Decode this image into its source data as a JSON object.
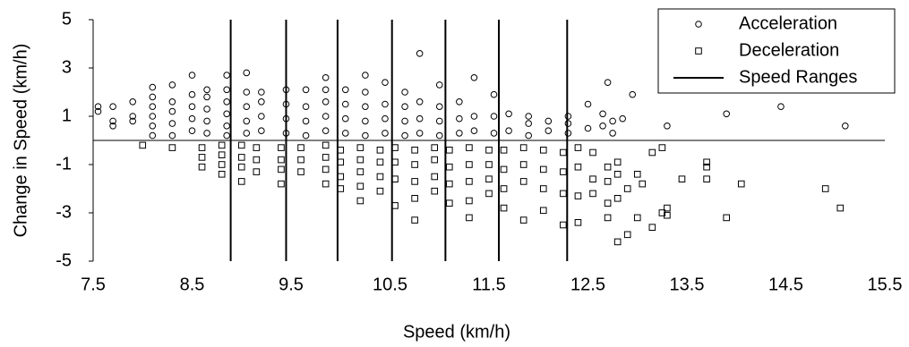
{
  "chart_data": {
    "type": "scatter",
    "x_label": "Speed (km/h)",
    "y_label": "Change in Speed (km/h)",
    "xlim": [
      7.5,
      15.5
    ],
    "xticks": [
      7.5,
      8.5,
      9.5,
      10.5,
      11.5,
      12.5,
      13.5,
      14.5,
      15.5
    ],
    "ylim": [
      -5,
      5
    ],
    "yticks": [
      -5,
      -3,
      -1,
      1,
      3,
      5
    ],
    "grid": false,
    "legend": "upper right",
    "series": [
      {
        "name": "Acceleration",
        "color": "#000000",
        "marker": "circle",
        "x": [
          7.55,
          7.55,
          7.7,
          7.7,
          7.7,
          7.9,
          7.9,
          7.9,
          8.1,
          8.1,
          8.1,
          8.1,
          8.1,
          8.1,
          8.3,
          8.3,
          8.3,
          8.3,
          8.3,
          8.5,
          8.5,
          8.5,
          8.5,
          8.5,
          8.65,
          8.65,
          8.65,
          8.65,
          8.65,
          8.85,
          8.85,
          8.85,
          8.85,
          8.85,
          8.85,
          9.05,
          9.05,
          9.05,
          9.05,
          9.05,
          9.2,
          9.2,
          9.2,
          9.2,
          9.45,
          9.45,
          9.45,
          9.45,
          9.65,
          9.65,
          9.65,
          9.65,
          9.85,
          9.85,
          9.85,
          9.85,
          9.85,
          10.05,
          10.05,
          10.05,
          10.05,
          10.25,
          10.25,
          10.25,
          10.25,
          10.25,
          10.45,
          10.45,
          10.45,
          10.45,
          10.65,
          10.65,
          10.65,
          10.65,
          10.8,
          10.8,
          10.8,
          10.8,
          11.0,
          11.0,
          11.0,
          11.0,
          11.2,
          11.2,
          11.2,
          11.35,
          11.35,
          11.35,
          11.55,
          11.55,
          11.55,
          11.7,
          11.7,
          11.9,
          11.9,
          11.9,
          12.1,
          12.1,
          12.3,
          12.3,
          12.3,
          12.5,
          12.5,
          12.65,
          12.65,
          12.7,
          12.75,
          12.75,
          12.85,
          12.95,
          13.3,
          13.9,
          14.45,
          15.1
        ],
        "values": [
          1.2,
          1.4,
          0.6,
          0.8,
          1.4,
          0.8,
          1.0,
          1.6,
          0.2,
          0.6,
          1.0,
          1.4,
          1.8,
          2.2,
          0.2,
          0.7,
          1.2,
          1.6,
          2.3,
          0.4,
          0.9,
          1.4,
          1.9,
          2.7,
          0.3,
          0.8,
          1.3,
          1.8,
          2.1,
          0.2,
          0.6,
          1.1,
          1.6,
          2.1,
          2.7,
          0.3,
          0.8,
          1.4,
          2.0,
          2.8,
          0.4,
          1.0,
          1.6,
          2.0,
          0.3,
          0.9,
          1.5,
          2.1,
          0.2,
          0.8,
          1.4,
          2.1,
          0.4,
          1.0,
          1.6,
          2.1,
          2.6,
          0.3,
          0.9,
          1.5,
          2.1,
          0.2,
          0.8,
          1.4,
          2.0,
          2.7,
          0.3,
          0.9,
          1.5,
          2.4,
          0.2,
          0.8,
          1.4,
          2.0,
          0.3,
          0.9,
          1.6,
          3.6,
          0.2,
          0.8,
          1.4,
          2.3,
          0.3,
          0.9,
          1.6,
          0.4,
          1.0,
          2.6,
          0.3,
          1.0,
          1.9,
          0.4,
          1.1,
          0.2,
          0.7,
          1.0,
          0.4,
          0.8,
          0.3,
          0.7,
          1.0,
          0.5,
          1.5,
          1.1,
          0.6,
          2.4,
          0.3,
          0.8,
          0.9,
          1.9,
          0.6,
          1.1,
          1.4,
          0.6
        ]
      },
      {
        "name": "Deceleration",
        "color": "#000000",
        "marker": "square",
        "x": [
          8.0,
          8.3,
          8.6,
          8.6,
          8.6,
          8.8,
          8.8,
          8.8,
          8.8,
          9.0,
          9.0,
          9.0,
          9.0,
          9.15,
          9.15,
          9.15,
          9.4,
          9.4,
          9.4,
          9.4,
          9.6,
          9.6,
          9.6,
          9.85,
          9.85,
          9.85,
          9.85,
          10.0,
          10.0,
          10.0,
          10.0,
          10.2,
          10.2,
          10.2,
          10.2,
          10.2,
          10.4,
          10.4,
          10.4,
          10.4,
          10.55,
          10.55,
          10.55,
          10.55,
          10.75,
          10.75,
          10.75,
          10.75,
          10.75,
          10.95,
          10.95,
          10.95,
          10.95,
          11.1,
          11.1,
          11.1,
          11.1,
          11.3,
          11.3,
          11.3,
          11.3,
          11.3,
          11.5,
          11.5,
          11.5,
          11.5,
          11.65,
          11.65,
          11.65,
          11.65,
          11.85,
          11.85,
          11.85,
          11.85,
          12.05,
          12.05,
          12.05,
          12.05,
          12.25,
          12.25,
          12.25,
          12.25,
          12.4,
          12.4,
          12.4,
          12.4,
          12.55,
          12.55,
          12.55,
          12.7,
          12.7,
          12.7,
          12.7,
          12.8,
          12.8,
          12.8,
          12.8,
          12.9,
          12.9,
          13.0,
          13.0,
          13.05,
          13.15,
          13.15,
          13.25,
          13.25,
          13.3,
          13.3,
          13.45,
          13.7,
          13.7,
          13.7,
          13.9,
          14.05,
          14.9,
          15.05
        ],
        "values": [
          -0.2,
          -0.3,
          -0.3,
          -0.7,
          -1.1,
          -0.2,
          -0.6,
          -1.0,
          -1.4,
          -0.2,
          -0.7,
          -1.1,
          -1.7,
          -0.3,
          -0.8,
          -1.3,
          -0.3,
          -0.8,
          -1.2,
          -1.8,
          -0.3,
          -0.8,
          -1.3,
          -0.2,
          -0.7,
          -1.2,
          -1.8,
          -0.4,
          -0.9,
          -1.5,
          -2.0,
          -0.3,
          -0.8,
          -1.3,
          -1.9,
          -2.5,
          -0.4,
          -0.9,
          -1.5,
          -2.1,
          -0.3,
          -0.9,
          -1.6,
          -2.7,
          -0.4,
          -1.0,
          -1.7,
          -2.4,
          -3.3,
          -0.3,
          -0.8,
          -1.5,
          -2.1,
          -0.4,
          -1.1,
          -1.8,
          -2.6,
          -0.3,
          -1.0,
          -1.7,
          -2.5,
          -3.2,
          -0.4,
          -1.0,
          -1.6,
          -2.2,
          -0.4,
          -1.2,
          -2.0,
          -2.8,
          -0.3,
          -1.0,
          -1.7,
          -3.3,
          -0.4,
          -1.2,
          -2.0,
          -2.9,
          -0.5,
          -1.3,
          -2.2,
          -3.5,
          -0.3,
          -1.1,
          -2.3,
          -3.4,
          -0.5,
          -1.6,
          -2.2,
          -1.1,
          -1.7,
          -2.6,
          -3.2,
          -0.9,
          -1.4,
          -2.4,
          -4.2,
          -2.0,
          -3.9,
          -1.4,
          -3.2,
          -1.8,
          -0.5,
          -3.6,
          -0.3,
          -3.0,
          -2.8,
          -3.1,
          -1.6,
          -0.9,
          -1.1,
          -1.6,
          -3.2,
          -1.8,
          -2.0,
          -2.8
        ]
      },
      {
        "name": "Speed Ranges",
        "color": "#000000",
        "marker": "vline",
        "x": [
          8.89,
          9.45,
          9.97,
          10.52,
          11.06,
          11.6,
          12.29
        ]
      }
    ]
  }
}
